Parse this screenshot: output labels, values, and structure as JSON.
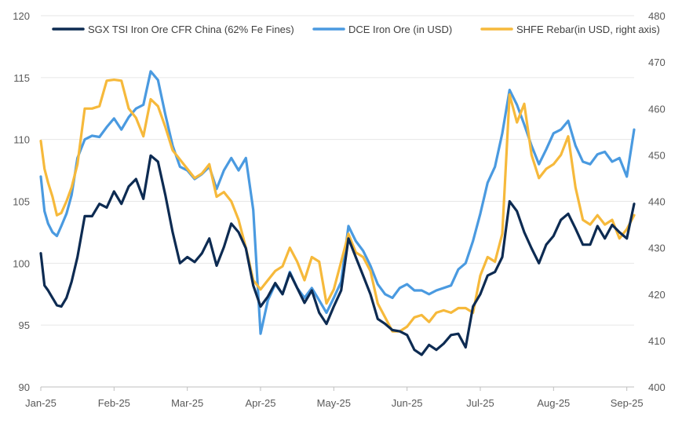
{
  "chart_data": {
    "type": "line",
    "title": "",
    "xlabel": "",
    "ylabel": "",
    "y2label": "",
    "x_tick_labels": [
      "Jan-25",
      "Feb-25",
      "Mar-25",
      "Apr-25",
      "May-25",
      "Jun-25",
      "Jul-25",
      "Aug-25",
      "Sep-25"
    ],
    "x_range": [
      0,
      8.1
    ],
    "ylim_left": [
      90,
      120
    ],
    "ylim_right": [
      400,
      480
    ],
    "y_left_ticks": [
      "90",
      "95",
      "100",
      "105",
      "110",
      "115",
      "120"
    ],
    "y_right_ticks": [
      "400",
      "410",
      "420",
      "430",
      "440",
      "450",
      "460",
      "470",
      "480"
    ],
    "grid": true,
    "legend_position": "top",
    "series": [
      {
        "name": "SGX TSI Iron Ore CFR China (62% Fe Fines)",
        "axis": "left",
        "color": "#0d2b52",
        "x": [
          0.0,
          0.05,
          0.1,
          0.16,
          0.22,
          0.28,
          0.35,
          0.42,
          0.5,
          0.6,
          0.7,
          0.8,
          0.9,
          1.0,
          1.1,
          1.2,
          1.3,
          1.4,
          1.5,
          1.6,
          1.7,
          1.8,
          1.9,
          2.0,
          2.1,
          2.2,
          2.3,
          2.4,
          2.5,
          2.6,
          2.7,
          2.8,
          2.9,
          3.0,
          3.1,
          3.2,
          3.3,
          3.4,
          3.5,
          3.6,
          3.7,
          3.8,
          3.9,
          4.0,
          4.1,
          4.2,
          4.3,
          4.4,
          4.5,
          4.6,
          4.7,
          4.8,
          4.9,
          5.0,
          5.1,
          5.2,
          5.3,
          5.4,
          5.5,
          5.6,
          5.7,
          5.8,
          5.9,
          6.0,
          6.1,
          6.2,
          6.3,
          6.4,
          6.5,
          6.6,
          6.7,
          6.8,
          6.9,
          7.0,
          7.1,
          7.2,
          7.3,
          7.4,
          7.5,
          7.6,
          7.7,
          7.8,
          7.9,
          8.0,
          8.1
        ],
        "values": [
          100.8,
          98.2,
          97.8,
          97.2,
          96.6,
          96.5,
          97.2,
          98.5,
          100.5,
          103.8,
          103.8,
          104.8,
          104.5,
          105.8,
          104.8,
          106.2,
          106.8,
          105.2,
          108.7,
          108.2,
          105.5,
          102.5,
          100.0,
          100.5,
          100.1,
          100.8,
          102.0,
          99.8,
          101.3,
          103.2,
          102.5,
          101.2,
          98.2,
          96.5,
          97.3,
          98.4,
          97.5,
          99.2,
          98.0,
          96.8,
          97.8,
          96.0,
          95.1,
          96.5,
          97.8,
          102.0,
          100.5,
          99.0,
          97.5,
          95.5,
          95.1,
          94.6,
          94.5,
          94.2,
          93.0,
          92.6,
          93.4,
          93.0,
          93.5,
          94.2,
          94.3,
          93.2,
          96.5,
          97.5,
          99.0,
          99.3,
          100.5,
          105.0,
          104.2,
          102.5,
          101.2,
          100.0,
          101.5,
          102.2,
          103.5,
          104.0,
          102.8,
          101.5,
          101.5,
          103.0,
          102.0,
          103.1,
          102.5,
          102.0,
          104.8
        ]
      },
      {
        "name": "DCE Iron Ore (in USD)",
        "axis": "left",
        "color": "#4a9ae0",
        "x": [
          0.0,
          0.05,
          0.1,
          0.16,
          0.22,
          0.28,
          0.35,
          0.42,
          0.5,
          0.6,
          0.7,
          0.8,
          0.9,
          1.0,
          1.1,
          1.2,
          1.3,
          1.4,
          1.5,
          1.6,
          1.7,
          1.8,
          1.9,
          2.0,
          2.1,
          2.2,
          2.3,
          2.4,
          2.5,
          2.6,
          2.7,
          2.8,
          2.9,
          3.0,
          3.1,
          3.2,
          3.3,
          3.4,
          3.5,
          3.6,
          3.7,
          3.8,
          3.9,
          4.0,
          4.1,
          4.2,
          4.3,
          4.4,
          4.5,
          4.6,
          4.7,
          4.8,
          4.9,
          5.0,
          5.1,
          5.2,
          5.3,
          5.4,
          5.5,
          5.6,
          5.7,
          5.8,
          5.9,
          6.0,
          6.1,
          6.2,
          6.3,
          6.4,
          6.5,
          6.6,
          6.7,
          6.8,
          6.9,
          7.0,
          7.1,
          7.2,
          7.3,
          7.4,
          7.5,
          7.6,
          7.7,
          7.8,
          7.9,
          8.0,
          8.1
        ],
        "values": [
          107.0,
          104.2,
          103.2,
          102.5,
          102.2,
          103.0,
          104.0,
          105.5,
          108.5,
          110.0,
          110.3,
          110.2,
          111.0,
          111.7,
          110.8,
          111.8,
          112.5,
          112.8,
          115.5,
          114.8,
          112.0,
          109.5,
          107.8,
          107.5,
          106.8,
          107.2,
          107.8,
          106.0,
          107.5,
          108.5,
          107.5,
          108.5,
          104.3,
          94.3,
          97.0,
          98.3,
          97.5,
          99.3,
          98.0,
          97.2,
          98.0,
          97.0,
          96.0,
          97.2,
          98.5,
          103.0,
          101.8,
          101.0,
          99.8,
          98.3,
          97.5,
          97.2,
          98.0,
          98.3,
          97.8,
          97.8,
          97.5,
          97.8,
          98.0,
          98.2,
          99.5,
          100.0,
          101.8,
          104.0,
          106.5,
          107.8,
          110.5,
          114.0,
          112.8,
          111.2,
          109.5,
          108.0,
          109.2,
          110.5,
          110.8,
          111.5,
          109.5,
          108.2,
          108.0,
          108.8,
          109.0,
          108.2,
          108.5,
          107.0,
          110.8
        ]
      },
      {
        "name": "SHFE Rebar(in USD, right axis)",
        "axis": "right",
        "color": "#f6b93b",
        "x": [
          0.0,
          0.05,
          0.1,
          0.16,
          0.22,
          0.28,
          0.35,
          0.42,
          0.5,
          0.6,
          0.7,
          0.8,
          0.9,
          1.0,
          1.1,
          1.2,
          1.3,
          1.4,
          1.5,
          1.6,
          1.7,
          1.8,
          1.9,
          2.0,
          2.1,
          2.2,
          2.3,
          2.4,
          2.5,
          2.6,
          2.7,
          2.8,
          2.9,
          3.0,
          3.1,
          3.2,
          3.3,
          3.4,
          3.5,
          3.6,
          3.7,
          3.8,
          3.9,
          4.0,
          4.1,
          4.2,
          4.3,
          4.4,
          4.5,
          4.6,
          4.7,
          4.8,
          4.9,
          5.0,
          5.1,
          5.2,
          5.3,
          5.4,
          5.5,
          5.6,
          5.7,
          5.8,
          5.9,
          6.0,
          6.1,
          6.2,
          6.3,
          6.4,
          6.5,
          6.6,
          6.7,
          6.8,
          6.9,
          7.0,
          7.1,
          7.2,
          7.3,
          7.4,
          7.5,
          7.6,
          7.7,
          7.8,
          7.9,
          8.0,
          8.1
        ],
        "values": [
          453.0,
          447.0,
          444.0,
          441.0,
          437.0,
          437.5,
          440.0,
          443.0,
          448.0,
          460.0,
          460.0,
          460.5,
          466.0,
          466.2,
          466.0,
          460.0,
          458.0,
          454.0,
          462.0,
          460.5,
          456.0,
          451.0,
          449.0,
          447.0,
          445.0,
          446.0,
          448.0,
          441.0,
          442.0,
          440.0,
          436.0,
          430.0,
          423.0,
          421.0,
          423.0,
          425.0,
          426.0,
          430.0,
          427.0,
          423.0,
          428.0,
          427.0,
          418.0,
          421.0,
          427.0,
          433.0,
          429.0,
          428.0,
          425.0,
          418.0,
          415.0,
          412.0,
          412.0,
          413.0,
          415.0,
          415.5,
          414.0,
          416.0,
          416.5,
          416.0,
          417.0,
          417.0,
          416.0,
          424.0,
          428.0,
          427.0,
          433.0,
          463.0,
          457.0,
          461.0,
          450.0,
          445.0,
          447.0,
          448.0,
          450.0,
          454.0,
          443.0,
          436.0,
          435.0,
          437.0,
          435.0,
          436.0,
          432.0,
          434.0,
          437.0
        ]
      }
    ]
  }
}
